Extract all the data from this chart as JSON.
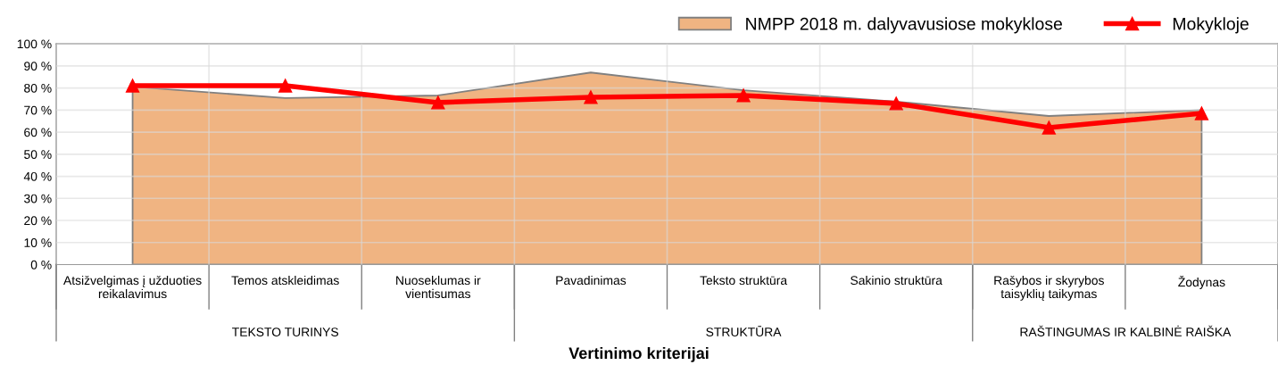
{
  "chart_data": {
    "type": "area",
    "xlabel": "Vertinimo kriterijai",
    "categories": [
      "Atsižvelgimas į užduoties\nreikalavimus",
      "Temos atskleidimas",
      "Nuoseklumas ir\nvientisumas",
      "Pavadinimas",
      "Teksto struktūra",
      "Sakinio struktūra",
      "Rašybos ir skyrybos\ntaisyklių taikymas",
      "Žodynas"
    ],
    "series": [
      {
        "name": "NMPP 2018 m. dalyvavusiose mokyklose",
        "color": "#f0b482",
        "values": [
          80.6,
          75.4,
          76.6,
          87,
          79,
          73.8,
          67.3,
          70
        ]
      },
      {
        "name": "Mokykloje",
        "type": "line",
        "marker": "triangle",
        "line_style": "solid",
        "color": "#ff0000",
        "values": [
          81,
          81,
          73.4,
          75.8,
          76.6,
          73,
          62,
          68.5
        ]
      }
    ],
    "annotations": [
      "TEKSTO TURINYS",
      "STRUKTŪRA",
      "RAŠTINGUMAS IR KALBINĖ RAIŠKA"
    ],
    "ylim": [
      0,
      100
    ],
    "yticks": [
      {
        "value": 0,
        "label": "0 %"
      },
      {
        "value": 10,
        "label": "10 %"
      },
      {
        "value": 20,
        "label": "20 %"
      },
      {
        "value": 30,
        "label": "30 %"
      },
      {
        "value": 40,
        "label": "40 %"
      },
      {
        "value": 50,
        "label": "50 %"
      },
      {
        "value": 60,
        "label": "60 %"
      },
      {
        "value": 70,
        "label": "70 %"
      },
      {
        "value": 80,
        "label": "80 %"
      },
      {
        "value": 90,
        "label": "90 %"
      },
      {
        "value": 100,
        "label": "100 %"
      }
    ],
    "grid": true,
    "legend": "top right"
  }
}
